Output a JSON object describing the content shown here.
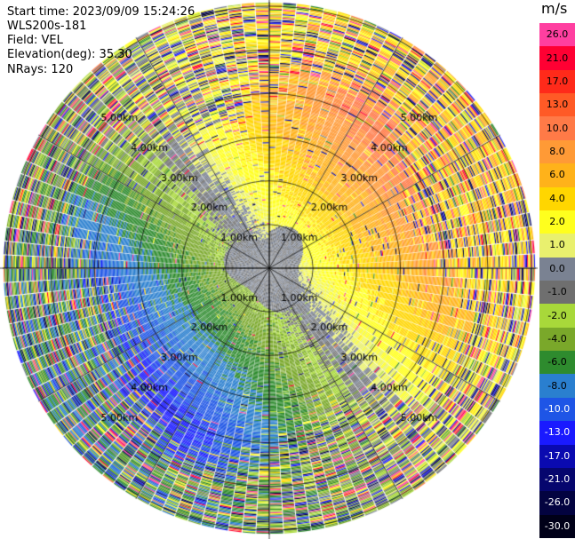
{
  "header": {
    "start_time": "Start time: 2023/09/09 15:24:26",
    "instrument": "WLS200s-181",
    "field": "Field: VEL",
    "elevation": "Elevation(deg): 35.30",
    "nrays": "NRays: 120"
  },
  "colorbar": {
    "unit": "m/s",
    "levels": [
      {
        "label": "26.0",
        "color": "#ff3fa0"
      },
      {
        "label": "21.0",
        "color": "#ff0033"
      },
      {
        "label": "17.0",
        "color": "#ff2a1a"
      },
      {
        "label": "13.0",
        "color": "#ff5a26"
      },
      {
        "label": "10.0",
        "color": "#ff7a47"
      },
      {
        "label": "8.0",
        "color": "#ff9a36"
      },
      {
        "label": "6.0",
        "color": "#ffb21a"
      },
      {
        "label": "4.0",
        "color": "#ffd600"
      },
      {
        "label": "2.0",
        "color": "#ffff1e"
      },
      {
        "label": "1.0",
        "color": "#e9f06e"
      },
      {
        "label": "0.0",
        "color": "#7a8292"
      },
      {
        "label": "-1.0",
        "color": "#6f6f6f"
      },
      {
        "label": "-2.0",
        "color": "#a8d83a"
      },
      {
        "label": "-4.0",
        "color": "#7aa82a"
      },
      {
        "label": "-6.0",
        "color": "#2e8b2e"
      },
      {
        "label": "-8.0",
        "color": "#2a7fcf"
      },
      {
        "label": "-10.0",
        "color": "#1e55e6"
      },
      {
        "label": "-13.0",
        "color": "#1a1aff"
      },
      {
        "label": "-17.0",
        "color": "#0a0ab0"
      },
      {
        "label": "-21.0",
        "color": "#06066e"
      },
      {
        "label": "-26.0",
        "color": "#030340"
      },
      {
        "label": "-30.0",
        "color": "#000018"
      }
    ]
  },
  "chart_data": {
    "type": "ppi",
    "title": "",
    "field": "VEL",
    "nrays": 120,
    "elevation_deg": 35.3,
    "range_rings_km": [
      1.0,
      2.0,
      3.0,
      4.0,
      5.0,
      6.0
    ],
    "ring_labels": [
      "1.00km",
      "2.00km",
      "3.00km",
      "4.00km",
      "5.00km"
    ],
    "max_range_km": 6.1,
    "velocity_range": [
      -30.0,
      26.0
    ],
    "pattern": {
      "zero_core_km": 0.85,
      "coherent_limit_km": 4.6,
      "receding_max_bearing_deg": 80,
      "approaching_max_bearing_deg": 260,
      "peak_receding_ms": 12,
      "peak_approaching_ms": -8
    }
  }
}
